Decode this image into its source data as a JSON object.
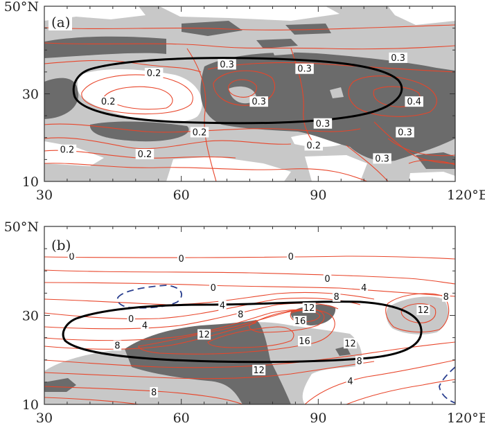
{
  "chart_data": [
    {
      "type": "contour",
      "panel_label": "(a)",
      "x_ticks": [
        {
          "value": 30,
          "label": "30"
        },
        {
          "value": 60,
          "label": "60"
        },
        {
          "value": 90,
          "label": "90"
        },
        {
          "value": 120,
          "label": "120°E"
        }
      ],
      "y_ticks": [
        {
          "value": 10,
          "label": "10"
        },
        {
          "value": 30,
          "label": "30"
        },
        {
          "value": 50,
          "label": "50°N"
        }
      ],
      "xlim": [
        30,
        120
      ],
      "ylim": [
        10,
        50
      ],
      "contour_labels": [
        {
          "text": "0.2",
          "lon": 54,
          "lat": 34.5
        },
        {
          "text": "0.3",
          "lon": 70,
          "lat": 36.5
        },
        {
          "text": "0.3",
          "lon": 87,
          "lat": 35.5
        },
        {
          "text": "0.3",
          "lon": 107.5,
          "lat": 38
        },
        {
          "text": "0.2",
          "lon": 44,
          "lat": 28
        },
        {
          "text": "0.3",
          "lon": 77,
          "lat": 28
        },
        {
          "text": "0.4",
          "lon": 111,
          "lat": 28
        },
        {
          "text": "0.2",
          "lon": 64,
          "lat": 21
        },
        {
          "text": "0.3",
          "lon": 91,
          "lat": 23
        },
        {
          "text": "0.3",
          "lon": 109,
          "lat": 21
        },
        {
          "text": "0.2",
          "lon": 35,
          "lat": 17
        },
        {
          "text": "0.2",
          "lon": 52,
          "lat": 16
        },
        {
          "text": "0.2",
          "lon": 89,
          "lat": 18
        },
        {
          "text": "0.3",
          "lon": 104,
          "lat": 15
        }
      ]
    },
    {
      "type": "contour",
      "panel_label": "(b)",
      "x_ticks": [
        {
          "value": 30,
          "label": "30"
        },
        {
          "value": 60,
          "label": "60"
        },
        {
          "value": 90,
          "label": "90"
        },
        {
          "value": 120,
          "label": "120°E"
        }
      ],
      "y_ticks": [
        {
          "value": 10,
          "label": "10"
        },
        {
          "value": 30,
          "label": "30"
        },
        {
          "value": 50,
          "label": "50°N"
        }
      ],
      "xlim": [
        30,
        120
      ],
      "ylim": [
        10,
        50
      ],
      "contour_labels": [
        {
          "text": "0",
          "lon": 36,
          "lat": 43
        },
        {
          "text": "0",
          "lon": 60,
          "lat": 42.5
        },
        {
          "text": "0",
          "lon": 84,
          "lat": 43
        },
        {
          "text": "0",
          "lon": 67,
          "lat": 36
        },
        {
          "text": "0",
          "lon": 92,
          "lat": 38
        },
        {
          "text": "4",
          "lon": 100,
          "lat": 36
        },
        {
          "text": "4",
          "lon": 69,
          "lat": 32
        },
        {
          "text": "8",
          "lon": 94,
          "lat": 34
        },
        {
          "text": "8",
          "lon": 118,
          "lat": 34
        },
        {
          "text": "12",
          "lon": 88,
          "lat": 31.5
        },
        {
          "text": "12",
          "lon": 113,
          "lat": 31
        },
        {
          "text": "0",
          "lon": 49,
          "lat": 29
        },
        {
          "text": "4",
          "lon": 52,
          "lat": 27.5
        },
        {
          "text": "8",
          "lon": 73,
          "lat": 30
        },
        {
          "text": "16",
          "lon": 86,
          "lat": 28.5
        },
        {
          "text": "8",
          "lon": 46,
          "lat": 23
        },
        {
          "text": "12",
          "lon": 65,
          "lat": 25.5
        },
        {
          "text": "16",
          "lon": 87,
          "lat": 24
        },
        {
          "text": "12",
          "lon": 97,
          "lat": 23.5
        },
        {
          "text": "8",
          "lon": 99,
          "lat": 19.5
        },
        {
          "text": "12",
          "lon": 77,
          "lat": 17.5
        },
        {
          "text": "4",
          "lon": 97,
          "lat": 15
        },
        {
          "text": "8",
          "lon": 54,
          "lat": 12.5
        }
      ]
    }
  ]
}
